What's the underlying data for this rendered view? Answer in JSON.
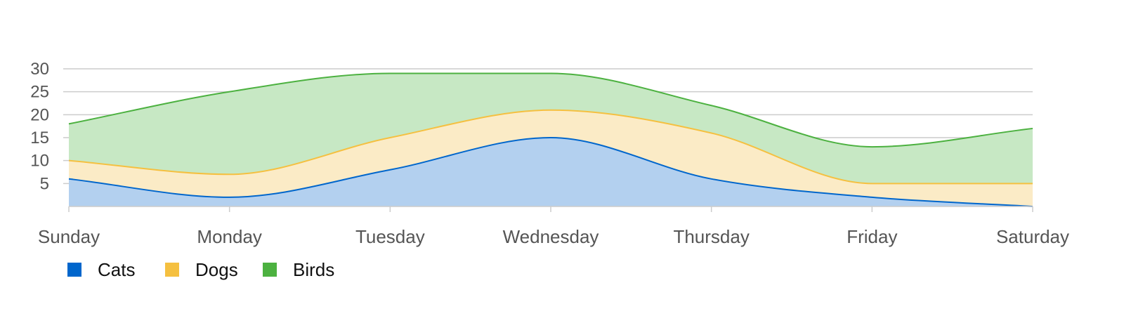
{
  "chart_data": {
    "type": "area",
    "stacked": true,
    "smooth": true,
    "categories": [
      "Sunday",
      "Monday",
      "Tuesday",
      "Wednesday",
      "Thursday",
      "Friday",
      "Saturday"
    ],
    "yticks": [
      5,
      10,
      15,
      20,
      25,
      30
    ],
    "ylim": [
      0,
      30
    ],
    "grid": true,
    "legend_position": "bottom-left",
    "series": [
      {
        "name": "Cats",
        "values": [
          6,
          2,
          8,
          15,
          6,
          2,
          0
        ],
        "color": "#0066cc",
        "fill": "#b3d0ef"
      },
      {
        "name": "Dogs",
        "values": [
          4,
          5,
          7,
          6,
          10,
          3,
          5
        ],
        "color": "#f5c040",
        "fill": "#fbebc6"
      },
      {
        "name": "Birds",
        "values": [
          8,
          18,
          14,
          8,
          6,
          8,
          12
        ],
        "color": "#4cb140",
        "fill": "#c7e8c4"
      }
    ]
  }
}
